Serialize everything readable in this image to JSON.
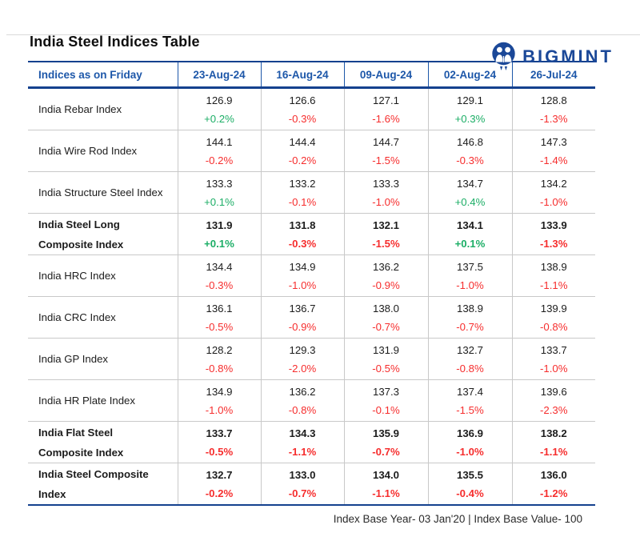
{
  "header": {
    "logo_text": "BIGMINT",
    "title": "India Steel Indices Table"
  },
  "table": {
    "label_header": "Indices as on Friday",
    "date_columns": [
      "23-Aug-24",
      "16-Aug-24",
      "09-Aug-24",
      "02-Aug-24",
      "26-Jul-24"
    ],
    "rows": [
      {
        "label_lines": [
          "India Rebar Index"
        ],
        "bold": false,
        "cells": [
          {
            "value": "126.9",
            "change": "+0.2%",
            "direction": "up"
          },
          {
            "value": "126.6",
            "change": "-0.3%",
            "direction": "down"
          },
          {
            "value": "127.1",
            "change": "-1.6%",
            "direction": "down"
          },
          {
            "value": "129.1",
            "change": "+0.3%",
            "direction": "up"
          },
          {
            "value": "128.8",
            "change": "-1.3%",
            "direction": "down"
          }
        ]
      },
      {
        "label_lines": [
          "India Wire Rod Index"
        ],
        "bold": false,
        "cells": [
          {
            "value": "144.1",
            "change": "-0.2%",
            "direction": "down"
          },
          {
            "value": "144.4",
            "change": "-0.2%",
            "direction": "down"
          },
          {
            "value": "144.7",
            "change": "-1.5%",
            "direction": "down"
          },
          {
            "value": "146.8",
            "change": "-0.3%",
            "direction": "down"
          },
          {
            "value": "147.3",
            "change": "-1.4%",
            "direction": "down"
          }
        ]
      },
      {
        "label_lines": [
          "India Structure Steel Index"
        ],
        "bold": false,
        "cells": [
          {
            "value": "133.3",
            "change": "+0.1%",
            "direction": "up"
          },
          {
            "value": "133.2",
            "change": "-0.1%",
            "direction": "down"
          },
          {
            "value": "133.3",
            "change": "-1.0%",
            "direction": "down"
          },
          {
            "value": "134.7",
            "change": "+0.4%",
            "direction": "up"
          },
          {
            "value": "134.2",
            "change": "-1.0%",
            "direction": "down"
          }
        ]
      },
      {
        "label_lines": [
          "India Steel Long",
          "Composite Index"
        ],
        "bold": true,
        "cells": [
          {
            "value": "131.9",
            "change": "+0.1%",
            "direction": "up"
          },
          {
            "value": "131.8",
            "change": "-0.3%",
            "direction": "down"
          },
          {
            "value": "132.1",
            "change": "-1.5%",
            "direction": "down"
          },
          {
            "value": "134.1",
            "change": "+0.1%",
            "direction": "up"
          },
          {
            "value": "133.9",
            "change": "-1.3%",
            "direction": "down"
          }
        ]
      },
      {
        "label_lines": [
          "India HRC Index"
        ],
        "bold": false,
        "cells": [
          {
            "value": "134.4",
            "change": "-0.3%",
            "direction": "down"
          },
          {
            "value": "134.9",
            "change": "-1.0%",
            "direction": "down"
          },
          {
            "value": "136.2",
            "change": "-0.9%",
            "direction": "down"
          },
          {
            "value": "137.5",
            "change": "-1.0%",
            "direction": "down"
          },
          {
            "value": "138.9",
            "change": "-1.1%",
            "direction": "down"
          }
        ]
      },
      {
        "label_lines": [
          "India CRC Index"
        ],
        "bold": false,
        "cells": [
          {
            "value": "136.1",
            "change": "-0.5%",
            "direction": "down"
          },
          {
            "value": "136.7",
            "change": "-0.9%",
            "direction": "down"
          },
          {
            "value": "138.0",
            "change": "-0.7%",
            "direction": "down"
          },
          {
            "value": "138.9",
            "change": "-0.7%",
            "direction": "down"
          },
          {
            "value": "139.9",
            "change": "-0.8%",
            "direction": "down"
          }
        ]
      },
      {
        "label_lines": [
          "India GP Index"
        ],
        "bold": false,
        "cells": [
          {
            "value": "128.2",
            "change": "-0.8%",
            "direction": "down"
          },
          {
            "value": "129.3",
            "change": "-2.0%",
            "direction": "down"
          },
          {
            "value": "131.9",
            "change": "-0.5%",
            "direction": "down"
          },
          {
            "value": "132.7",
            "change": "-0.8%",
            "direction": "down"
          },
          {
            "value": "133.7",
            "change": "-1.0%",
            "direction": "down"
          }
        ]
      },
      {
        "label_lines": [
          "India HR Plate Index"
        ],
        "bold": false,
        "cells": [
          {
            "value": "134.9",
            "change": "-1.0%",
            "direction": "down"
          },
          {
            "value": "136.2",
            "change": "-0.8%",
            "direction": "down"
          },
          {
            "value": "137.3",
            "change": "-0.1%",
            "direction": "down"
          },
          {
            "value": "137.4",
            "change": "-1.5%",
            "direction": "down"
          },
          {
            "value": "139.6",
            "change": "-2.3%",
            "direction": "down"
          }
        ]
      },
      {
        "label_lines": [
          "India Flat Steel",
          "Composite Index"
        ],
        "bold": true,
        "cells": [
          {
            "value": "133.7",
            "change": "-0.5%",
            "direction": "down"
          },
          {
            "value": "134.3",
            "change": "-1.1%",
            "direction": "down"
          },
          {
            "value": "135.9",
            "change": "-0.7%",
            "direction": "down"
          },
          {
            "value": "136.9",
            "change": "-1.0%",
            "direction": "down"
          },
          {
            "value": "138.2",
            "change": "-1.1%",
            "direction": "down"
          }
        ]
      },
      {
        "label_lines": [
          "India Steel Composite",
          "Index"
        ],
        "bold": true,
        "cells": [
          {
            "value": "132.7",
            "change": "-0.2%",
            "direction": "down"
          },
          {
            "value": "133.0",
            "change": "-0.7%",
            "direction": "down"
          },
          {
            "value": "134.0",
            "change": "-1.1%",
            "direction": "down"
          },
          {
            "value": "135.5",
            "change": "-0.4%",
            "direction": "down"
          },
          {
            "value": "136.0",
            "change": "-1.2%",
            "direction": "down"
          }
        ]
      }
    ]
  },
  "footer": {
    "note": "Index Base Year- 03 Jan'20 | Index Base Value- 100"
  },
  "colors": {
    "accent_navy": "#14418e",
    "header_blue": "#1d57a9",
    "logo_blue": "#1b4898",
    "positive_green": "#1cae66",
    "negative_red": "#f62d2d"
  },
  "chart_data": {
    "type": "table",
    "title": "India Steel Indices Table",
    "columns": [
      "Indices as on Friday",
      "23-Aug-24",
      "16-Aug-24",
      "09-Aug-24",
      "02-Aug-24",
      "26-Jul-24"
    ],
    "rows": [
      {
        "index": "India Rebar Index",
        "values": [
          126.9,
          126.6,
          127.1,
          129.1,
          128.8
        ],
        "changes_pct": [
          0.2,
          -0.3,
          -1.6,
          0.3,
          -1.3
        ]
      },
      {
        "index": "India Wire Rod Index",
        "values": [
          144.1,
          144.4,
          144.7,
          146.8,
          147.3
        ],
        "changes_pct": [
          -0.2,
          -0.2,
          -1.5,
          -0.3,
          -1.4
        ]
      },
      {
        "index": "India Structure Steel Index",
        "values": [
          133.3,
          133.2,
          133.3,
          134.7,
          134.2
        ],
        "changes_pct": [
          0.1,
          -0.1,
          -1.0,
          0.4,
          -1.0
        ]
      },
      {
        "index": "India Steel Long Composite Index",
        "values": [
          131.9,
          131.8,
          132.1,
          134.1,
          133.9
        ],
        "changes_pct": [
          0.1,
          -0.3,
          -1.5,
          0.1,
          -1.3
        ]
      },
      {
        "index": "India HRC Index",
        "values": [
          134.4,
          134.9,
          136.2,
          137.5,
          138.9
        ],
        "changes_pct": [
          -0.3,
          -1.0,
          -0.9,
          -1.0,
          -1.1
        ]
      },
      {
        "index": "India CRC Index",
        "values": [
          136.1,
          136.7,
          138.0,
          138.9,
          139.9
        ],
        "changes_pct": [
          -0.5,
          -0.9,
          -0.7,
          -0.7,
          -0.8
        ]
      },
      {
        "index": "India GP Index",
        "values": [
          128.2,
          129.3,
          131.9,
          132.7,
          133.7
        ],
        "changes_pct": [
          -0.8,
          -2.0,
          -0.5,
          -0.8,
          -1.0
        ]
      },
      {
        "index": "India HR Plate Index",
        "values": [
          134.9,
          136.2,
          137.3,
          137.4,
          139.6
        ],
        "changes_pct": [
          -1.0,
          -0.8,
          -0.1,
          -1.5,
          -2.3
        ]
      },
      {
        "index": "India Flat Steel Composite Index",
        "values": [
          133.7,
          134.3,
          135.9,
          136.9,
          138.2
        ],
        "changes_pct": [
          -0.5,
          -1.1,
          -0.7,
          -1.0,
          -1.1
        ]
      },
      {
        "index": "India Steel Composite Index",
        "values": [
          132.7,
          133.0,
          134.0,
          135.5,
          136.0
        ],
        "changes_pct": [
          -0.2,
          -0.7,
          -1.1,
          -0.4,
          -1.2
        ]
      }
    ],
    "note": "Index Base Year- 03 Jan'20 | Index Base Value- 100",
    "color_coding": "positive changes green, negative changes red"
  }
}
